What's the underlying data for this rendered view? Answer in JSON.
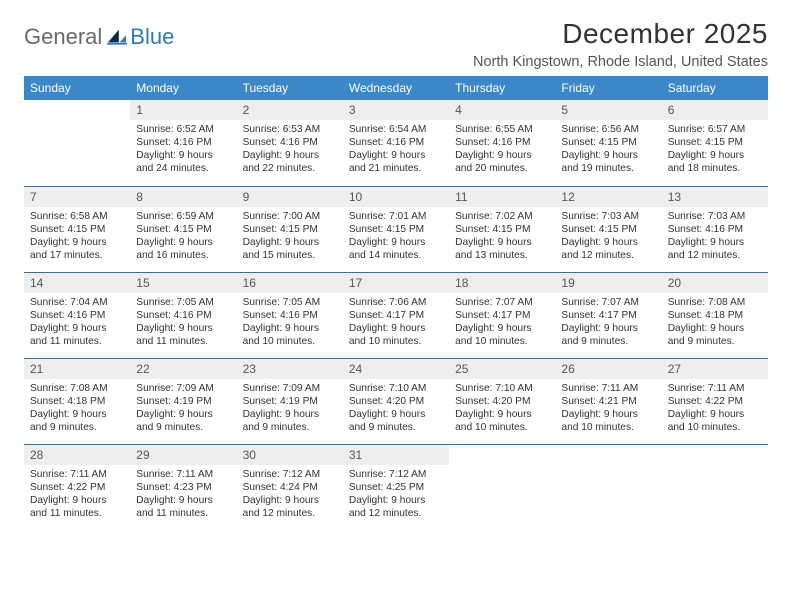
{
  "brand": {
    "part1": "General",
    "part2": "Blue"
  },
  "title": "December 2025",
  "location": "North Kingstown, Rhode Island, United States",
  "colors": {
    "header_bg": "#3b87c8",
    "header_text": "#ffffff",
    "daynum_bg": "#eeeeee",
    "row_border": "#2f6fa8",
    "brand_gray": "#6a6a6a",
    "brand_blue": "#2f79bd"
  },
  "weekdays": [
    "Sunday",
    "Monday",
    "Tuesday",
    "Wednesday",
    "Thursday",
    "Friday",
    "Saturday"
  ],
  "weeks": [
    [
      {
        "n": "",
        "sr": "",
        "ss": "",
        "dl": ""
      },
      {
        "n": "1",
        "sr": "Sunrise: 6:52 AM",
        "ss": "Sunset: 4:16 PM",
        "dl": "Daylight: 9 hours and 24 minutes."
      },
      {
        "n": "2",
        "sr": "Sunrise: 6:53 AM",
        "ss": "Sunset: 4:16 PM",
        "dl": "Daylight: 9 hours and 22 minutes."
      },
      {
        "n": "3",
        "sr": "Sunrise: 6:54 AM",
        "ss": "Sunset: 4:16 PM",
        "dl": "Daylight: 9 hours and 21 minutes."
      },
      {
        "n": "4",
        "sr": "Sunrise: 6:55 AM",
        "ss": "Sunset: 4:16 PM",
        "dl": "Daylight: 9 hours and 20 minutes."
      },
      {
        "n": "5",
        "sr": "Sunrise: 6:56 AM",
        "ss": "Sunset: 4:15 PM",
        "dl": "Daylight: 9 hours and 19 minutes."
      },
      {
        "n": "6",
        "sr": "Sunrise: 6:57 AM",
        "ss": "Sunset: 4:15 PM",
        "dl": "Daylight: 9 hours and 18 minutes."
      }
    ],
    [
      {
        "n": "7",
        "sr": "Sunrise: 6:58 AM",
        "ss": "Sunset: 4:15 PM",
        "dl": "Daylight: 9 hours and 17 minutes."
      },
      {
        "n": "8",
        "sr": "Sunrise: 6:59 AM",
        "ss": "Sunset: 4:15 PM",
        "dl": "Daylight: 9 hours and 16 minutes."
      },
      {
        "n": "9",
        "sr": "Sunrise: 7:00 AM",
        "ss": "Sunset: 4:15 PM",
        "dl": "Daylight: 9 hours and 15 minutes."
      },
      {
        "n": "10",
        "sr": "Sunrise: 7:01 AM",
        "ss": "Sunset: 4:15 PM",
        "dl": "Daylight: 9 hours and 14 minutes."
      },
      {
        "n": "11",
        "sr": "Sunrise: 7:02 AM",
        "ss": "Sunset: 4:15 PM",
        "dl": "Daylight: 9 hours and 13 minutes."
      },
      {
        "n": "12",
        "sr": "Sunrise: 7:03 AM",
        "ss": "Sunset: 4:15 PM",
        "dl": "Daylight: 9 hours and 12 minutes."
      },
      {
        "n": "13",
        "sr": "Sunrise: 7:03 AM",
        "ss": "Sunset: 4:16 PM",
        "dl": "Daylight: 9 hours and 12 minutes."
      }
    ],
    [
      {
        "n": "14",
        "sr": "Sunrise: 7:04 AM",
        "ss": "Sunset: 4:16 PM",
        "dl": "Daylight: 9 hours and 11 minutes."
      },
      {
        "n": "15",
        "sr": "Sunrise: 7:05 AM",
        "ss": "Sunset: 4:16 PM",
        "dl": "Daylight: 9 hours and 11 minutes."
      },
      {
        "n": "16",
        "sr": "Sunrise: 7:05 AM",
        "ss": "Sunset: 4:16 PM",
        "dl": "Daylight: 9 hours and 10 minutes."
      },
      {
        "n": "17",
        "sr": "Sunrise: 7:06 AM",
        "ss": "Sunset: 4:17 PM",
        "dl": "Daylight: 9 hours and 10 minutes."
      },
      {
        "n": "18",
        "sr": "Sunrise: 7:07 AM",
        "ss": "Sunset: 4:17 PM",
        "dl": "Daylight: 9 hours and 10 minutes."
      },
      {
        "n": "19",
        "sr": "Sunrise: 7:07 AM",
        "ss": "Sunset: 4:17 PM",
        "dl": "Daylight: 9 hours and 9 minutes."
      },
      {
        "n": "20",
        "sr": "Sunrise: 7:08 AM",
        "ss": "Sunset: 4:18 PM",
        "dl": "Daylight: 9 hours and 9 minutes."
      }
    ],
    [
      {
        "n": "21",
        "sr": "Sunrise: 7:08 AM",
        "ss": "Sunset: 4:18 PM",
        "dl": "Daylight: 9 hours and 9 minutes."
      },
      {
        "n": "22",
        "sr": "Sunrise: 7:09 AM",
        "ss": "Sunset: 4:19 PM",
        "dl": "Daylight: 9 hours and 9 minutes."
      },
      {
        "n": "23",
        "sr": "Sunrise: 7:09 AM",
        "ss": "Sunset: 4:19 PM",
        "dl": "Daylight: 9 hours and 9 minutes."
      },
      {
        "n": "24",
        "sr": "Sunrise: 7:10 AM",
        "ss": "Sunset: 4:20 PM",
        "dl": "Daylight: 9 hours and 9 minutes."
      },
      {
        "n": "25",
        "sr": "Sunrise: 7:10 AM",
        "ss": "Sunset: 4:20 PM",
        "dl": "Daylight: 9 hours and 10 minutes."
      },
      {
        "n": "26",
        "sr": "Sunrise: 7:11 AM",
        "ss": "Sunset: 4:21 PM",
        "dl": "Daylight: 9 hours and 10 minutes."
      },
      {
        "n": "27",
        "sr": "Sunrise: 7:11 AM",
        "ss": "Sunset: 4:22 PM",
        "dl": "Daylight: 9 hours and 10 minutes."
      }
    ],
    [
      {
        "n": "28",
        "sr": "Sunrise: 7:11 AM",
        "ss": "Sunset: 4:22 PM",
        "dl": "Daylight: 9 hours and 11 minutes."
      },
      {
        "n": "29",
        "sr": "Sunrise: 7:11 AM",
        "ss": "Sunset: 4:23 PM",
        "dl": "Daylight: 9 hours and 11 minutes."
      },
      {
        "n": "30",
        "sr": "Sunrise: 7:12 AM",
        "ss": "Sunset: 4:24 PM",
        "dl": "Daylight: 9 hours and 12 minutes."
      },
      {
        "n": "31",
        "sr": "Sunrise: 7:12 AM",
        "ss": "Sunset: 4:25 PM",
        "dl": "Daylight: 9 hours and 12 minutes."
      },
      {
        "n": "",
        "sr": "",
        "ss": "",
        "dl": ""
      },
      {
        "n": "",
        "sr": "",
        "ss": "",
        "dl": ""
      },
      {
        "n": "",
        "sr": "",
        "ss": "",
        "dl": ""
      }
    ]
  ]
}
